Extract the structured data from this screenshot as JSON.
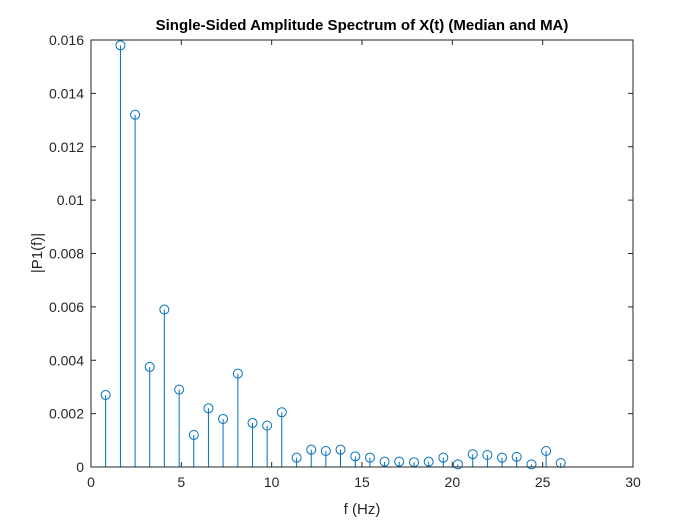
{
  "chart_data": {
    "type": "stem",
    "title": "Single-Sided Amplitude Spectrum of X(t) (Median and MA)",
    "xlabel": "f (Hz)",
    "ylabel": "|P1(f)|",
    "xlim": [
      0,
      30
    ],
    "ylim": [
      0,
      0.016
    ],
    "xticks": [
      0,
      5,
      10,
      15,
      20,
      25,
      30
    ],
    "xtick_labels": [
      "0",
      "5",
      "10",
      "15",
      "20",
      "25",
      "30"
    ],
    "yticks": [
      0,
      0.002,
      0.004,
      0.006,
      0.008,
      0.01,
      0.012,
      0.014,
      0.016
    ],
    "ytick_labels": [
      "0",
      "0.002",
      "0.004",
      "0.006",
      "0.008",
      "0.01",
      "0.012",
      "0.014",
      "0.016"
    ],
    "grid": false,
    "box": true,
    "colors": {
      "stem": "#0072BD",
      "axis": "#262626"
    },
    "series": [
      {
        "marker": "circle",
        "x": [
          0.81,
          1.63,
          2.44,
          3.25,
          4.06,
          4.88,
          5.69,
          6.5,
          7.31,
          8.13,
          8.94,
          9.75,
          10.56,
          11.38,
          12.19,
          13.0,
          13.81,
          14.63,
          15.44,
          16.25,
          17.06,
          17.88,
          18.69,
          19.5,
          20.31,
          21.13,
          21.94,
          22.75,
          23.56,
          24.38,
          25.19,
          26.0
        ],
        "y": [
          0.0027,
          0.0158,
          0.0132,
          0.00375,
          0.0059,
          0.0029,
          0.0012,
          0.0022,
          0.0018,
          0.0035,
          0.00165,
          0.00155,
          0.00205,
          0.00035,
          0.00065,
          0.0006,
          0.00065,
          0.0004,
          0.00035,
          0.0002,
          0.0002,
          0.00018,
          0.0002,
          0.00035,
          0.0001,
          0.00048,
          0.00045,
          0.00035,
          0.00038,
          0.0001,
          0.0006,
          0.00015
        ]
      }
    ]
  }
}
